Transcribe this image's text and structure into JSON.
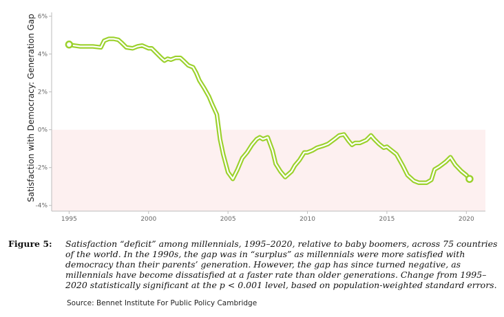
{
  "chart_data": {
    "type": "line",
    "ylabel": "Satisfaction with Democracy: Generation Gap",
    "xlim": [
      1993.9,
      2021.2
    ],
    "ylim": [
      -4.3,
      6.2
    ],
    "xticks": [
      1995,
      2000,
      2005,
      2010,
      2015,
      2020
    ],
    "yticks": [
      6,
      4,
      2,
      0,
      -2,
      -4
    ],
    "ytick_labels": [
      "6%",
      "4%",
      "2%",
      "0%",
      "-2%",
      "-4%"
    ],
    "negative_region_color": "#fdf0f0",
    "line_color": "#9bd12c",
    "grid": false,
    "x": [
      1995.0,
      1995.3,
      1995.7,
      1996.0,
      1996.5,
      1997.0,
      1997.2,
      1997.5,
      1997.8,
      1998.1,
      1998.3,
      1998.6,
      1999.0,
      1999.3,
      1999.6,
      2000.0,
      2000.2,
      2000.5,
      2000.8,
      2001.0,
      2001.2,
      2001.4,
      2001.7,
      2002.0,
      2002.2,
      2002.5,
      2002.8,
      2003.0,
      2003.2,
      2003.5,
      2003.8,
      2004.0,
      2004.3,
      2004.5,
      2004.7,
      2005.0,
      2005.3,
      2005.6,
      2005.9,
      2006.2,
      2006.5,
      2006.8,
      2007.0,
      2007.2,
      2007.5,
      2007.8,
      2008.0,
      2008.3,
      2008.6,
      2009.0,
      2009.2,
      2009.5,
      2009.8,
      2010.0,
      2010.3,
      2010.6,
      2011.0,
      2011.3,
      2011.7,
      2012.0,
      2012.3,
      2012.6,
      2012.8,
      2013.0,
      2013.3,
      2013.7,
      2014.0,
      2014.2,
      2014.5,
      2014.8,
      2015.0,
      2015.3,
      2015.6,
      2016.0,
      2016.3,
      2016.7,
      2017.0,
      2017.5,
      2017.8,
      2018.0,
      2018.3,
      2018.7,
      2019.0,
      2019.3,
      2019.7,
      2020.0,
      2020.2
    ],
    "series": [
      {
        "values": [
          4.5,
          4.45,
          4.4,
          4.4,
          4.4,
          4.35,
          4.7,
          4.8,
          4.8,
          4.75,
          4.6,
          4.35,
          4.3,
          4.4,
          4.45,
          4.3,
          4.3,
          4.05,
          3.8,
          3.65,
          3.75,
          3.7,
          3.8,
          3.8,
          3.65,
          3.4,
          3.3,
          3.0,
          2.6,
          2.2,
          1.75,
          1.35,
          0.8,
          -0.5,
          -1.3,
          -2.25,
          -2.6,
          -2.1,
          -1.5,
          -1.2,
          -0.8,
          -0.5,
          -0.4,
          -0.5,
          -0.4,
          -1.1,
          -1.8,
          -2.2,
          -2.5,
          -2.2,
          -1.9,
          -1.6,
          -1.2,
          -1.2,
          -1.1,
          -0.95,
          -0.85,
          -0.75,
          -0.5,
          -0.3,
          -0.25,
          -0.6,
          -0.8,
          -0.7,
          -0.7,
          -0.55,
          -0.3,
          -0.5,
          -0.75,
          -0.95,
          -0.9,
          -1.1,
          -1.3,
          -1.9,
          -2.4,
          -2.7,
          -2.8,
          -2.8,
          -2.65,
          -2.1,
          -1.95,
          -1.7,
          -1.45,
          -1.85,
          -2.2,
          -2.4,
          -2.6
        ]
      }
    ]
  },
  "caption": {
    "label": "Figure 5:",
    "text": "Satisfaction “deficit” among millennials, 1995–2020, relative to baby boomers, across 75 countries of the world. In the 1990s, the gap was in “surplus” as millennials were more satisfied with democracy than their parents’ generation. However, the gap has since turned negative, as millennials have become dissatisfied at a faster rate than older generations. Change from 1995–2020 statistically significant at the p < 0.001 level, based on population-weighted standard errors."
  },
  "source": "Source: Bennet Institute For Public Policy Cambridge"
}
